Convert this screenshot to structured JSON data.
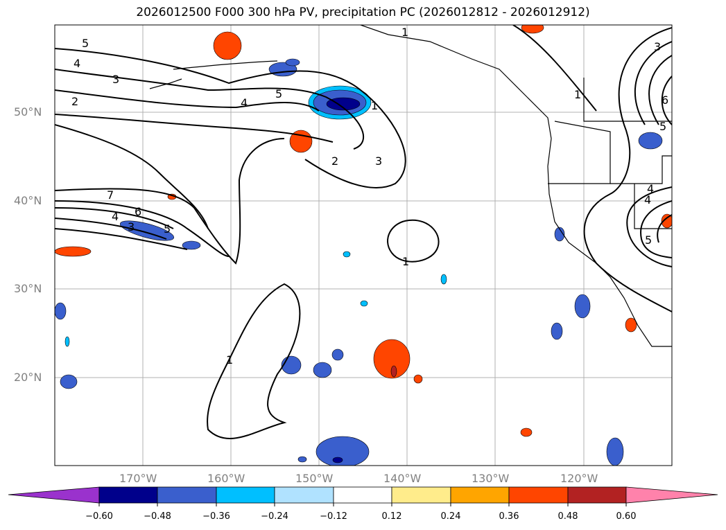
{
  "title": "2026012500 F000 300 hPa PV, precipitation PC (2026012812 - 2026012912)",
  "lat_labels": [
    {
      "id": "lat-50",
      "text": "50°N"
    },
    {
      "id": "lat-40",
      "text": "40°N"
    },
    {
      "id": "lat-30",
      "text": "30°N"
    },
    {
      "id": "lat-20",
      "text": "20°N"
    }
  ],
  "lon_labels": [
    {
      "id": "lon-170",
      "text": "170°W"
    },
    {
      "id": "lon-160",
      "text": "160°W"
    },
    {
      "id": "lon-150",
      "text": "150°W"
    },
    {
      "id": "lon-140",
      "text": "140°W"
    },
    {
      "id": "lon-130",
      "text": "130°W"
    },
    {
      "id": "lon-120",
      "text": "120°W"
    }
  ],
  "contour_labels": [
    "5",
    "4",
    "3",
    "2",
    "4",
    "5",
    "1",
    "2",
    "3",
    "1",
    "3",
    "6",
    "4",
    "5",
    "7",
    "6",
    "4",
    "3",
    "1",
    "1",
    "1",
    "5",
    "4",
    "5"
  ],
  "colorbar": {
    "ticks": [
      "−0.60",
      "−0.48",
      "−0.36",
      "−0.24",
      "−0.12",
      "0.12",
      "0.24",
      "0.36",
      "0.48",
      "0.60"
    ],
    "colors": [
      "#9a32cd",
      "#00008b",
      "#3a5fcd",
      "#00bfff",
      "#b0e2ff",
      "#ffffff",
      "#ffec8b",
      "#ffa500",
      "#ff4500",
      "#b22222",
      "#ff82ab"
    ]
  }
}
